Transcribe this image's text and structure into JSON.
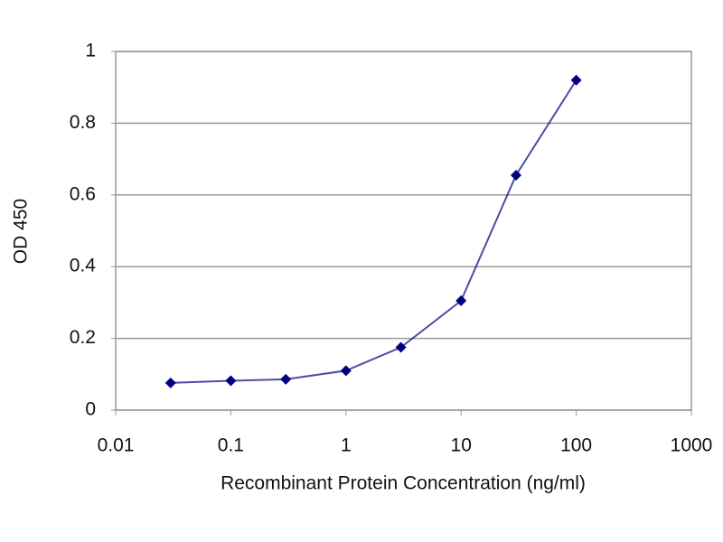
{
  "chart_data": {
    "type": "line",
    "x_label": "Recombinant Protein Concentration (ng/ml)",
    "y_label": "OD 450",
    "xscale": "log",
    "x": [
      0.03,
      0.1,
      0.3,
      1,
      3,
      10,
      30,
      100
    ],
    "series": [
      {
        "color": "#000080",
        "values": [
          0.076,
          0.082,
          0.086,
          0.11,
          0.175,
          0.305,
          0.655,
          0.92
        ]
      }
    ],
    "xlim": [
      0.01,
      1000
    ],
    "xticks": [
      0.01,
      0.1,
      1,
      10,
      100,
      1000
    ],
    "ylim": [
      0,
      1
    ],
    "yticks": [
      0,
      0.2,
      0.4,
      0.6,
      0.8,
      1
    ],
    "grid": true
  }
}
